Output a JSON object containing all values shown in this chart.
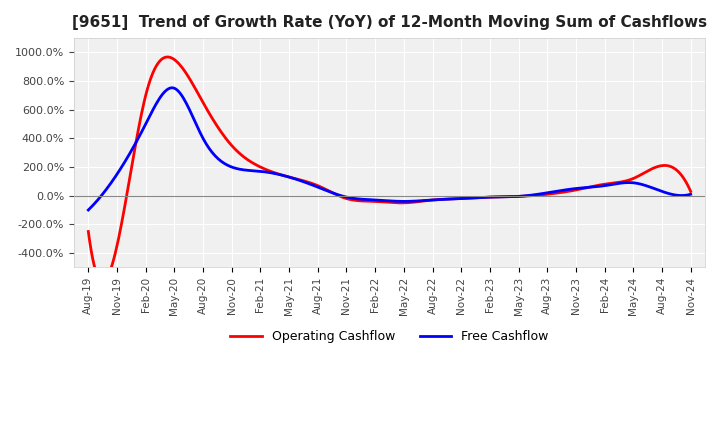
{
  "title": "[9651]  Trend of Growth Rate (YoY) of 12-Month Moving Sum of Cashflows",
  "title_fontsize": 11,
  "ylim": [
    -500,
    1100
  ],
  "yticks": [
    -400,
    -200,
    0,
    200,
    400,
    600,
    800,
    1000
  ],
  "background_color": "#ffffff",
  "plot_bg_color": "#f0f0f0",
  "grid_color": "#ffffff",
  "legend_labels": [
    "Operating Cashflow",
    "Free Cashflow"
  ],
  "legend_colors": [
    "#ff0000",
    "#0000ff"
  ],
  "x_labels": [
    "Aug-19",
    "Nov-19",
    "Feb-20",
    "May-20",
    "Aug-20",
    "Nov-20",
    "Feb-21",
    "May-21",
    "Aug-21",
    "Nov-21",
    "Feb-22",
    "May-22",
    "Aug-22",
    "Nov-22",
    "Feb-23",
    "May-23",
    "Aug-23",
    "Nov-23",
    "Feb-24",
    "May-24",
    "Aug-24",
    "Nov-24"
  ],
  "operating_cashflow": [
    -250,
    -350,
    700,
    950,
    650,
    350,
    200,
    130,
    70,
    -20,
    -40,
    -50,
    -30,
    -20,
    -10,
    -5,
    10,
    40,
    80,
    120,
    210,
    30
  ],
  "free_cashflow": [
    -100,
    150,
    500,
    750,
    400,
    200,
    170,
    130,
    60,
    -10,
    -30,
    -40,
    -30,
    -20,
    -10,
    -5,
    20,
    50,
    70,
    90,
    30,
    10
  ],
  "op_color": "#ff0000",
  "free_color": "#0000ff"
}
